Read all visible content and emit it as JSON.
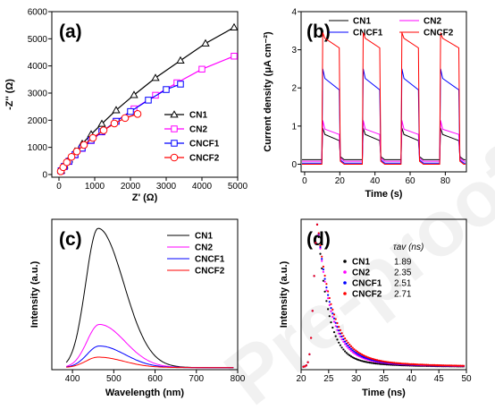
{
  "watermark": "Pre-proofs",
  "chart_data": [
    {
      "panel": "(a)",
      "type": "scatter",
      "xlabel": "Z' (Ω)",
      "ylabel": "-Z'' (Ω)",
      "xlim": [
        -200,
        5000
      ],
      "ylim": [
        -100,
        6000
      ],
      "xticks": [
        0,
        1000,
        2000,
        3000,
        4000,
        5000
      ],
      "yticks": [
        0,
        1000,
        2000,
        3000,
        4000,
        5000,
        6000
      ],
      "legend_position": "bottom-right",
      "series": [
        {
          "name": "CN1",
          "color": "#000000",
          "marker": "triangle",
          "x": [
            0,
            60,
            150,
            280,
            450,
            650,
            900,
            1200,
            1600,
            2100,
            2700,
            3400,
            4100,
            4900
          ],
          "y": [
            0,
            150,
            330,
            560,
            850,
            1130,
            1480,
            1870,
            2370,
            2930,
            3560,
            4200,
            4830,
            5420
          ]
        },
        {
          "name": "CN2",
          "color": "#ff00ff",
          "marker": "square",
          "x": [
            0,
            60,
            150,
            280,
            450,
            650,
            900,
            1200,
            1600,
            2100,
            2700,
            3300,
            4000,
            4900
          ],
          "y": [
            0,
            130,
            290,
            480,
            720,
            960,
            1250,
            1570,
            1960,
            2420,
            2920,
            3380,
            3880,
            4360
          ]
        },
        {
          "name": "CNCF1",
          "color": "#0000ff",
          "marker": "square",
          "x": [
            0,
            60,
            150,
            280,
            450,
            650,
            900,
            1200,
            1600,
            2000,
            2500,
            3000,
            3400
          ],
          "y": [
            0,
            140,
            300,
            490,
            730,
            970,
            1260,
            1580,
            1960,
            2320,
            2740,
            3130,
            3330
          ]
        },
        {
          "name": "CNCF2",
          "color": "#ff0000",
          "marker": "circle",
          "x": [
            0,
            50,
            120,
            220,
            350,
            500,
            700,
            950,
            1250,
            1550,
            1850,
            2200
          ],
          "y": [
            0,
            120,
            270,
            450,
            650,
            850,
            1090,
            1350,
            1630,
            1880,
            2080,
            2230
          ]
        }
      ]
    },
    {
      "panel": "(b)",
      "type": "line",
      "xlabel": "Time (s)",
      "ylabel": "Current density (μA cm⁻²)",
      "xlim": [
        -2,
        92
      ],
      "ylim": [
        -0.2,
        4.0
      ],
      "xticks": [
        0,
        20,
        40,
        60,
        80
      ],
      "yticks": [
        0,
        1,
        2,
        3,
        4
      ],
      "legend_position": "top",
      "on_off_cycles": [
        [
          10,
          20
        ],
        [
          33,
          43
        ],
        [
          55,
          65
        ],
        [
          77,
          88
        ]
      ],
      "series": [
        {
          "name": "CN1",
          "color": "#000000",
          "peak": 0.95,
          "plateau_start": 0.78,
          "plateau_end": 0.62,
          "dark": 0.12
        },
        {
          "name": "CN2",
          "color": "#ff00ff",
          "peak": 1.15,
          "plateau_start": 0.92,
          "plateau_end": 0.78,
          "dark": 0.08
        },
        {
          "name": "CNCF1",
          "color": "#0000ff",
          "peak": 2.5,
          "plateau_start": 2.25,
          "plateau_end": 1.95,
          "dark": 0.03
        },
        {
          "name": "CNCF2",
          "color": "#ff0000",
          "peak": 3.45,
          "plateau_start": 3.3,
          "plateau_end": 3.05,
          "dark": 0.0
        }
      ]
    },
    {
      "panel": "(c)",
      "type": "line",
      "xlabel": "Wavelength (nm)",
      "ylabel": "Intensity (a.u.)",
      "xlim": [
        350,
        800
      ],
      "ylim": [
        0,
        1.08
      ],
      "xticks": [
        400,
        500,
        600,
        700,
        800
      ],
      "legend_position": "top-right",
      "series": [
        {
          "name": "CN1",
          "color": "#000000",
          "peak_nm": 462,
          "peak": 1.0
        },
        {
          "name": "CN2",
          "color": "#ff00ff",
          "peak_nm": 465,
          "peak": 0.31
        },
        {
          "name": "CNCF1",
          "color": "#0000ff",
          "peak_nm": 465,
          "peak": 0.155
        },
        {
          "name": "CNCF2",
          "color": "#ff0000",
          "peak_nm": 462,
          "peak": 0.075
        }
      ]
    },
    {
      "panel": "(d)",
      "type": "scatter",
      "xlabel": "Time (ns)",
      "ylabel": "Intensity (a.u.)",
      "xlim": [
        20,
        50
      ],
      "ylim": [
        0,
        1.05
      ],
      "xticks": [
        20,
        25,
        30,
        35,
        40,
        45,
        50
      ],
      "legend_position": "top-right",
      "legend_header": "τav (ns)",
      "series": [
        {
          "name": "CN1",
          "color": "#000000",
          "tau_label": "1.89",
          "tau": 1.89
        },
        {
          "name": "CN2",
          "color": "#ff00ff",
          "tau_label": "2.35",
          "tau": 2.35
        },
        {
          "name": "CNCF1",
          "color": "#0000ff",
          "tau_label": "2.51",
          "tau": 2.51
        },
        {
          "name": "CNCF2",
          "color": "#ff0000",
          "tau_label": "2.71",
          "tau": 2.71
        }
      ]
    }
  ]
}
